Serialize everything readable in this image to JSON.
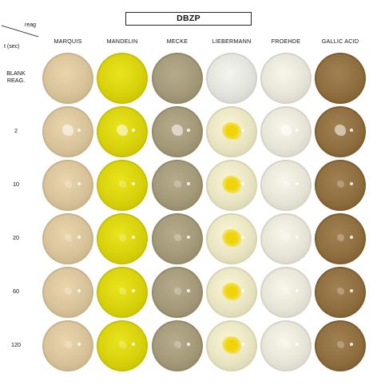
{
  "title": "DBZP",
  "corner": {
    "top_label": "reag",
    "bottom_label": "t (sec)"
  },
  "columns": [
    {
      "label": "MARQUIS"
    },
    {
      "label": "MANDELIN"
    },
    {
      "label": "MECKE"
    },
    {
      "label": "LIEBERMANN"
    },
    {
      "label": "FROEHDE"
    },
    {
      "label": "GALLIC ACID"
    }
  ],
  "rows": [
    {
      "label": "BLANK\nREAG."
    },
    {
      "label": "2"
    },
    {
      "label": "10"
    },
    {
      "label": "20"
    },
    {
      "label": "60"
    },
    {
      "label": "120"
    }
  ],
  "colors": {
    "marquis": "#d9c39a",
    "mandelin": "#d8d20c",
    "mecke": "#a49a7a",
    "liebermann_blank": "#e3e3de",
    "liebermann": "#e9e4c2",
    "liebermann_spot": "#f0d40a",
    "froehde": "#e6e5d8",
    "gallic": "#8f6e3f"
  }
}
